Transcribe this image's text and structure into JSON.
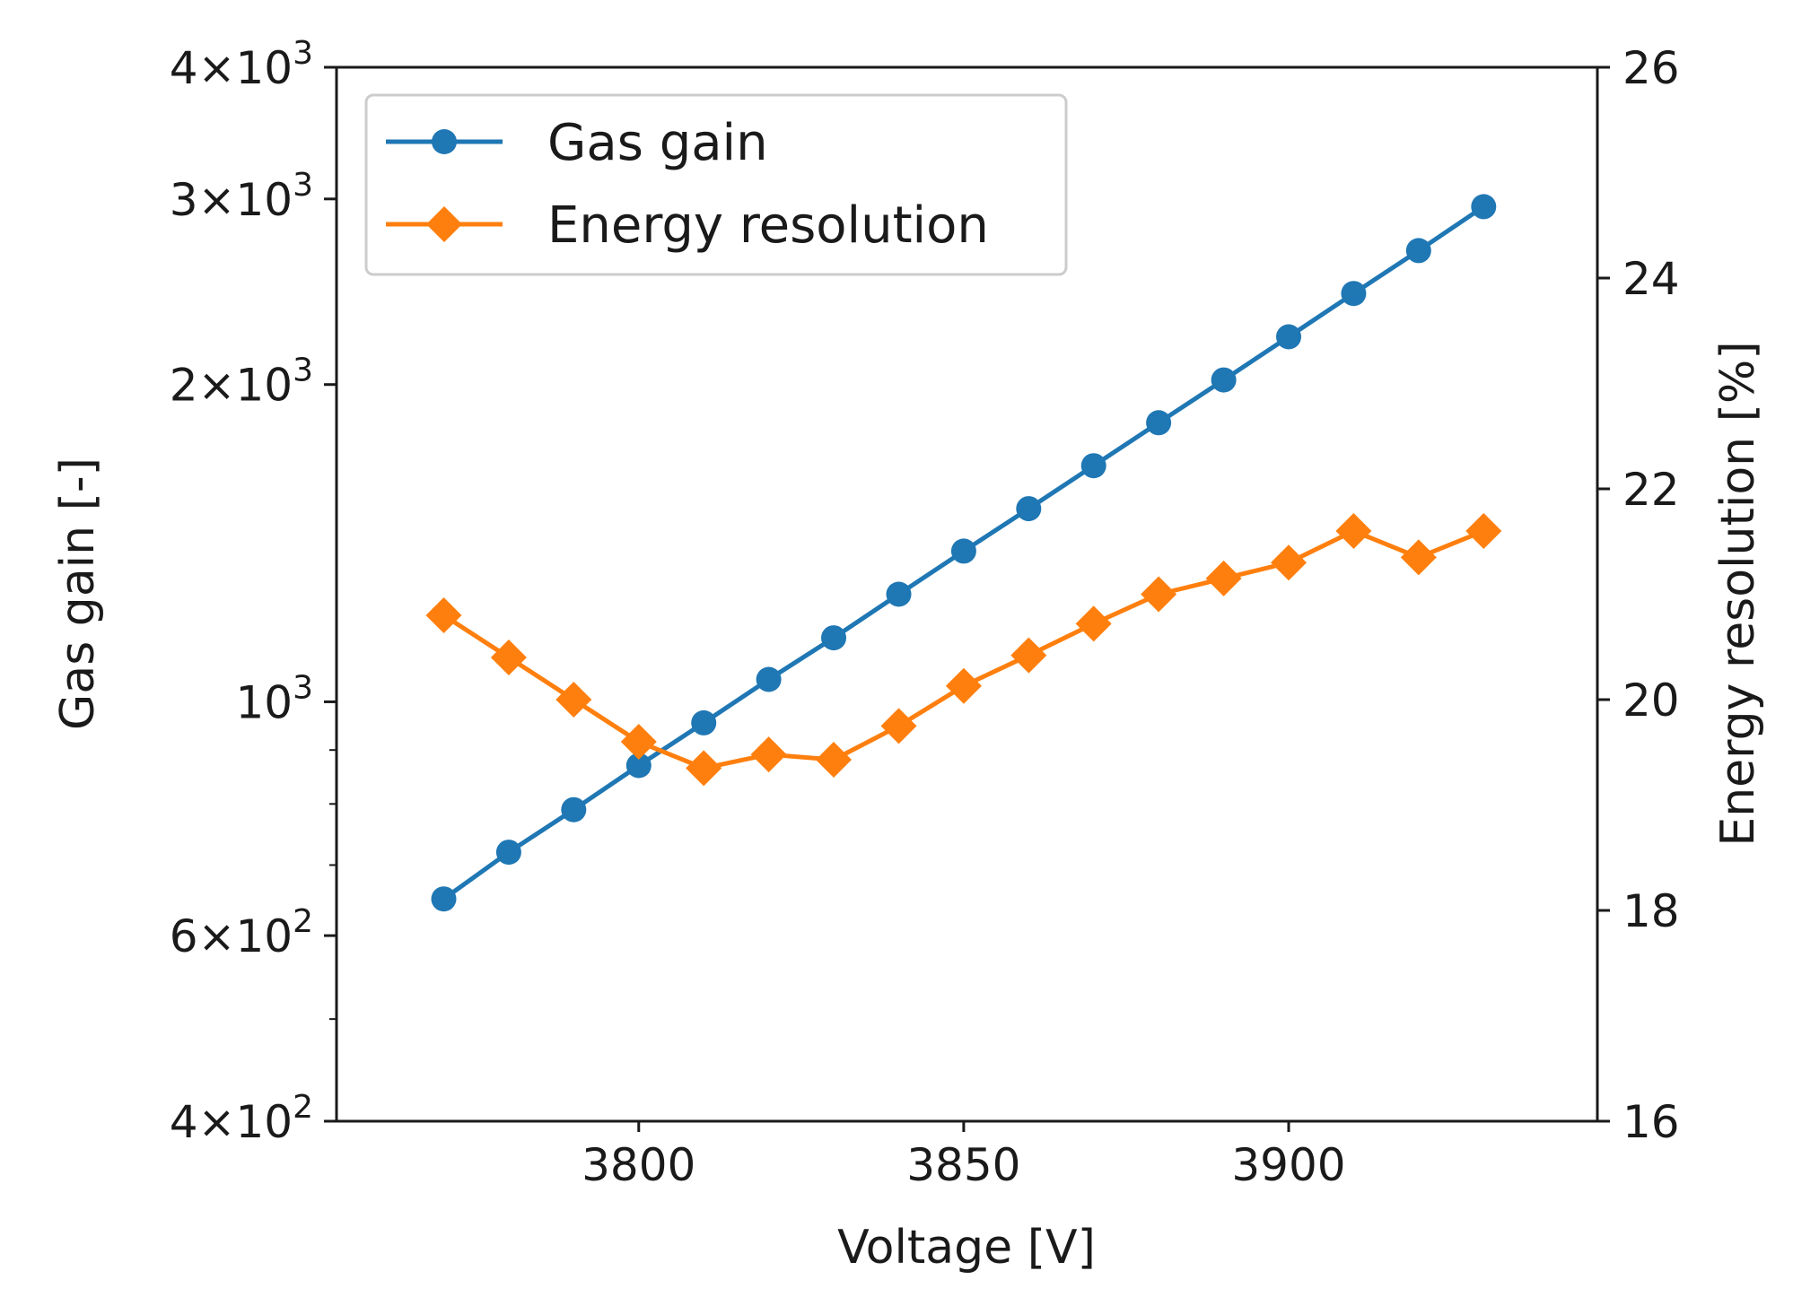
{
  "chart_data": {
    "type": "line",
    "xlabel": "Voltage [V]",
    "ylabel_left": "Gas gain [-]",
    "ylabel_right": "Energy resolution [%]",
    "xlim": [
      3753.5,
      3947.5
    ],
    "x_ticks": [
      3800,
      3850,
      3900
    ],
    "y_left_scale": "log",
    "y_left_lim": [
      400,
      4000
    ],
    "y_left_ticks": [
      {
        "value": 400,
        "base": "4",
        "exp": "2"
      },
      {
        "value": 600,
        "base": "6",
        "exp": "2"
      },
      {
        "value": 1000,
        "base": "10",
        "exp": "3"
      },
      {
        "value": 2000,
        "base": "2",
        "exp": "3"
      },
      {
        "value": 3000,
        "base": "3",
        "exp": "3"
      },
      {
        "value": 4000,
        "base": "4",
        "exp": "3"
      }
    ],
    "y_left_minor_ticks": [
      500,
      700,
      800,
      900
    ],
    "y_right_lim": [
      16,
      26
    ],
    "y_right_ticks": [
      16,
      18,
      20,
      22,
      24,
      26
    ],
    "grid": false,
    "legend_position": "top-left",
    "x": [
      3770,
      3780,
      3790,
      3800,
      3810,
      3820,
      3830,
      3840,
      3850,
      3860,
      3870,
      3880,
      3890,
      3900,
      3910,
      3920,
      3930
    ],
    "series": [
      {
        "name": "Gas gain",
        "axis": "left",
        "marker": "circle",
        "color": "#1f77b4",
        "values": [
          650,
          720,
          790,
          870,
          955,
          1050,
          1150,
          1265,
          1390,
          1525,
          1675,
          1840,
          2020,
          2220,
          2440,
          2680,
          2950
        ]
      },
      {
        "name": "Energy resolution",
        "axis": "right",
        "marker": "diamond",
        "color": "#ff7f0e",
        "values": [
          20.8,
          20.4,
          20.0,
          19.6,
          19.35,
          19.48,
          19.43,
          19.75,
          20.13,
          20.42,
          20.72,
          21.0,
          21.15,
          21.3,
          21.6,
          21.35,
          21.6
        ]
      }
    ]
  }
}
